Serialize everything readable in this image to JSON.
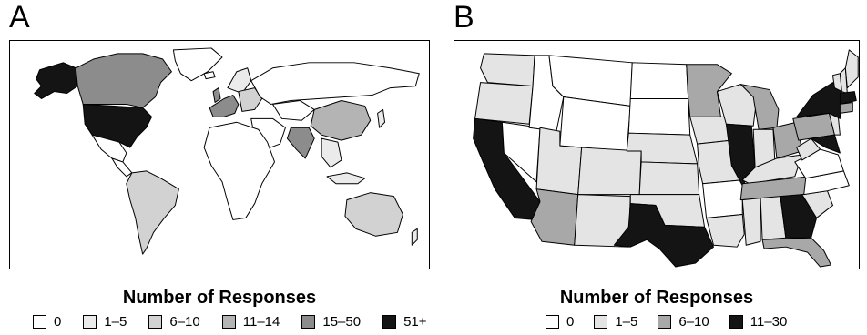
{
  "panels": [
    {
      "letter": "A",
      "legend_title": "Number of Responses",
      "legend": [
        {
          "label": "0",
          "color": "#ffffff"
        },
        {
          "label": "1–5",
          "color": "#ebebeb"
        },
        {
          "label": "6–10",
          "color": "#d2d2d2"
        },
        {
          "label": "11–14",
          "color": "#b4b4b4"
        },
        {
          "label": "15–50",
          "color": "#8c8c8c"
        },
        {
          "label": "51+",
          "color": "#141414"
        }
      ]
    },
    {
      "letter": "B",
      "legend_title": "Number of Responses",
      "legend": [
        {
          "label": "0",
          "color": "#ffffff"
        },
        {
          "label": "1–5",
          "color": "#e4e4e4"
        },
        {
          "label": "6–10",
          "color": "#a8a8a8"
        },
        {
          "label": "11–30",
          "color": "#141414"
        }
      ]
    }
  ]
}
